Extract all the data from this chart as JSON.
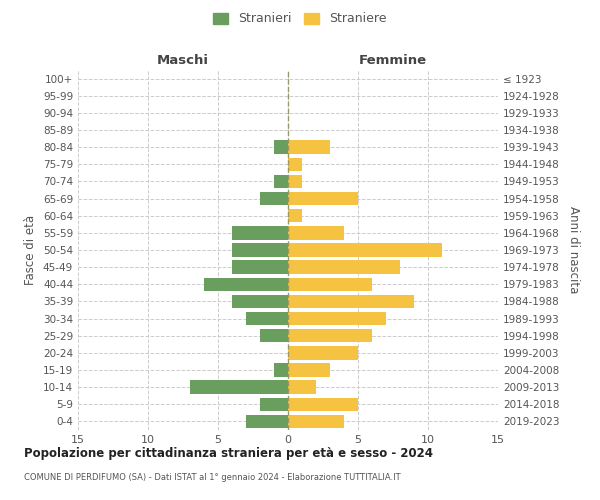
{
  "age_groups": [
    "0-4",
    "5-9",
    "10-14",
    "15-19",
    "20-24",
    "25-29",
    "30-34",
    "35-39",
    "40-44",
    "45-49",
    "50-54",
    "55-59",
    "60-64",
    "65-69",
    "70-74",
    "75-79",
    "80-84",
    "85-89",
    "90-94",
    "95-99",
    "100+"
  ],
  "birth_years": [
    "2019-2023",
    "2014-2018",
    "2009-2013",
    "2004-2008",
    "1999-2003",
    "1994-1998",
    "1989-1993",
    "1984-1988",
    "1979-1983",
    "1974-1978",
    "1969-1973",
    "1964-1968",
    "1959-1963",
    "1954-1958",
    "1949-1953",
    "1944-1948",
    "1939-1943",
    "1934-1938",
    "1929-1933",
    "1924-1928",
    "≤ 1923"
  ],
  "maschi": [
    3,
    2,
    7,
    1,
    0,
    2,
    3,
    4,
    6,
    4,
    4,
    4,
    0,
    2,
    1,
    0,
    1,
    0,
    0,
    0,
    0
  ],
  "femmine": [
    4,
    5,
    2,
    3,
    5,
    6,
    7,
    9,
    6,
    8,
    11,
    4,
    1,
    5,
    1,
    1,
    3,
    0,
    0,
    0,
    0
  ],
  "color_maschi": "#6a9e5e",
  "color_femmine": "#f5c242",
  "xlim": 15,
  "title": "Popolazione per cittadinanza straniera per età e sesso - 2024",
  "subtitle": "COMUNE DI PERDIFUMO (SA) - Dati ISTAT al 1° gennaio 2024 - Elaborazione TUTTITALIA.IT",
  "ylabel_left": "Fasce di età",
  "ylabel_right": "Anni di nascita",
  "legend_maschi": "Stranieri",
  "legend_femmine": "Straniere",
  "header_maschi": "Maschi",
  "header_femmine": "Femmine",
  "bg_color": "#ffffff",
  "grid_color": "#cccccc",
  "bar_height": 0.78
}
